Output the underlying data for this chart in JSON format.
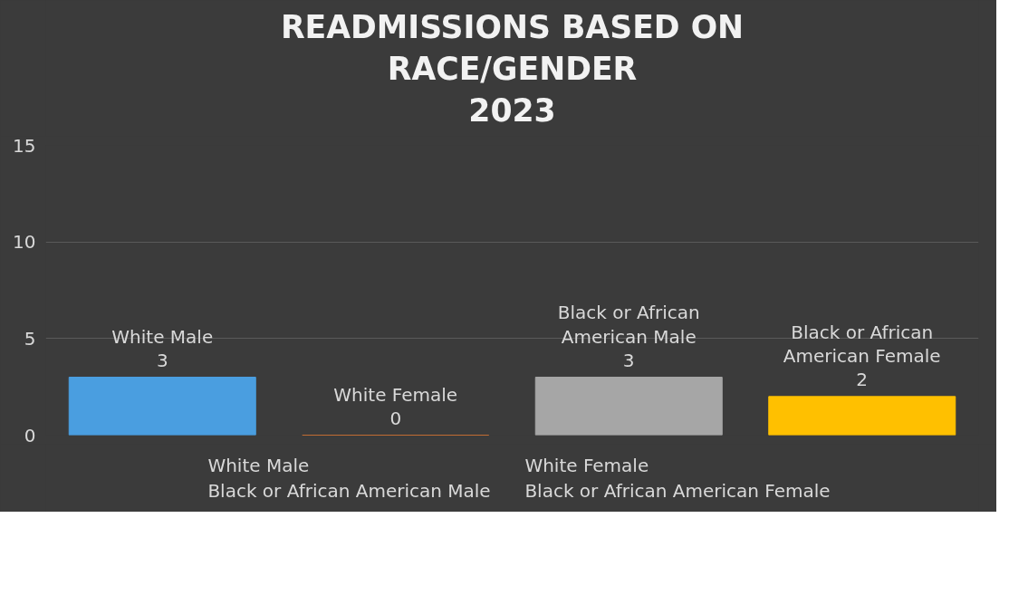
{
  "chart_data": {
    "type": "bar",
    "title": "READMISSIONS BASED ON\nRACE/GENDER\n2023",
    "categories": [
      null
    ],
    "series": [
      {
        "name": "White Male",
        "color": "#4a9ee0",
        "values": [
          3
        ]
      },
      {
        "name": "White Female",
        "color": "#ed7d31",
        "values": [
          0
        ]
      },
      {
        "name": "Black or African American Male",
        "color": "#a6a6a6",
        "values": [
          3
        ]
      },
      {
        "name": "Black or African American Female",
        "color": "#ffc000",
        "values": [
          2
        ]
      }
    ],
    "ylim": [
      0,
      15
    ],
    "yticks": [
      0,
      5,
      10,
      15
    ],
    "grid": "y",
    "legend": "bottom",
    "tick_labels": "y",
    "data_labels": true
  }
}
